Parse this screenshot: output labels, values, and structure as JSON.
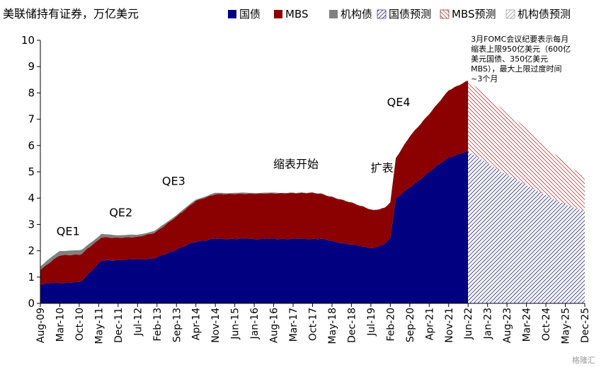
{
  "chart_data": {
    "type": "area",
    "title": "美联储持有证券，万亿美元",
    "ylim": [
      0,
      10
    ],
    "yticks": [
      0,
      1,
      2,
      3,
      4,
      5,
      6,
      7,
      8,
      9,
      10
    ],
    "grid": false,
    "legend_position": "top",
    "x_start": "Aug-09",
    "x_end": "Dec-25",
    "categories": [
      "Aug-09",
      "Mar-10",
      "Oct-10",
      "May-11",
      "Dec-11",
      "Jul-12",
      "Feb-13",
      "Sep-13",
      "Apr-14",
      "Nov-14",
      "Jun-15",
      "Jan-16",
      "Aug-16",
      "Mar-17",
      "Oct-17",
      "May-18",
      "Dec-18",
      "Jul-19",
      "Feb-20",
      "Sep-20",
      "Apr-21",
      "Nov-21",
      "Jun-22",
      "Jan-23",
      "Aug-23",
      "Mar-24",
      "Oct-24",
      "May-25",
      "Dec-25"
    ],
    "forecast_start": "Jun-22",
    "series": [
      {
        "name": "国债",
        "color": "#000080",
        "forecast": false,
        "points": [
          [
            "Aug-09",
            0.72
          ],
          [
            "Dec-09",
            0.77
          ],
          [
            "Oct-10",
            0.8
          ],
          [
            "Nov-10",
            0.86
          ],
          [
            "Jan-11",
            1.1
          ],
          [
            "Jun-11",
            1.62
          ],
          [
            "Jan-13",
            1.7
          ],
          [
            "Sep-13",
            2.05
          ],
          [
            "Apr-14",
            2.35
          ],
          [
            "Nov-14",
            2.45
          ],
          [
            "Jan-18",
            2.45
          ],
          [
            "Dec-18",
            2.23
          ],
          [
            "Aug-19",
            2.1
          ],
          [
            "Dec-19",
            2.25
          ],
          [
            "Feb-20",
            2.5
          ],
          [
            "Apr-20",
            4.0
          ],
          [
            "Sep-20",
            4.4
          ],
          [
            "Apr-21",
            5.0
          ],
          [
            "Nov-21",
            5.55
          ],
          [
            "Jun-22",
            5.77
          ]
        ]
      },
      {
        "name": "MBS",
        "color": "#8b0000",
        "forecast": false,
        "points": [
          [
            "Aug-09",
            0.55
          ],
          [
            "Mar-10",
            1.05
          ],
          [
            "Oct-10",
            1.05
          ],
          [
            "May-11",
            0.9
          ],
          [
            "Dec-11",
            0.85
          ],
          [
            "Jul-12",
            0.85
          ],
          [
            "Feb-13",
            1.0
          ],
          [
            "Sep-13",
            1.25
          ],
          [
            "Apr-14",
            1.55
          ],
          [
            "Nov-14",
            1.7
          ],
          [
            "Oct-17",
            1.75
          ],
          [
            "May-18",
            1.67
          ],
          [
            "Dec-18",
            1.6
          ],
          [
            "Jul-19",
            1.45
          ],
          [
            "Feb-20",
            1.35
          ],
          [
            "Sep-20",
            1.95
          ],
          [
            "Apr-21",
            2.2
          ],
          [
            "Nov-21",
            2.55
          ],
          [
            "Jun-22",
            2.7
          ]
        ]
      },
      {
        "name": "机构债",
        "color": "#808080",
        "forecast": false,
        "points": [
          [
            "Aug-09",
            0.13
          ],
          [
            "Mar-10",
            0.17
          ],
          [
            "Oct-10",
            0.16
          ],
          [
            "May-11",
            0.12
          ],
          [
            "Dec-11",
            0.1
          ],
          [
            "Jul-12",
            0.08
          ],
          [
            "Feb-13",
            0.07
          ],
          [
            "Apr-14",
            0.05
          ],
          [
            "Jun-15",
            0.04
          ],
          [
            "Oct-17",
            0.01
          ],
          [
            "Jun-22",
            0.0
          ]
        ]
      },
      {
        "name": "国债预测",
        "color": "#000080",
        "forecast": true,
        "points": [
          [
            "Jun-22",
            5.77
          ],
          [
            "Dec-22",
            5.4
          ],
          [
            "Jun-23",
            5.0
          ],
          [
            "Dec-23",
            4.67
          ],
          [
            "Jun-24",
            4.33
          ],
          [
            "Dec-24",
            4.0
          ],
          [
            "Jun-25",
            3.72
          ],
          [
            "Dec-25",
            3.5
          ]
        ]
      },
      {
        "name": "MBS预测",
        "color": "#8b0000",
        "forecast": true,
        "points": [
          [
            "Jun-22",
            2.7
          ],
          [
            "Dec-22",
            2.55
          ],
          [
            "Jun-23",
            2.42
          ],
          [
            "Dec-23",
            2.25
          ],
          [
            "Jun-24",
            2.05
          ],
          [
            "Dec-24",
            1.78
          ],
          [
            "Jun-25",
            1.55
          ],
          [
            "Dec-25",
            1.3
          ]
        ]
      },
      {
        "name": "机构债预测",
        "color": "#808080",
        "forecast": true,
        "points": [
          [
            "Jun-22",
            0.0
          ],
          [
            "Dec-25",
            0.0
          ]
        ]
      }
    ],
    "annotations": [
      {
        "text": "QE1",
        "x": "Jun-10",
        "y": 2.6
      },
      {
        "text": "QE2",
        "x": "Jan-12",
        "y": 3.3
      },
      {
        "text": "QE3",
        "x": "Aug-13",
        "y": 4.5
      },
      {
        "text": "缩表开始",
        "x": "Apr-17",
        "y": 5.15
      },
      {
        "text": "扩表",
        "x": "Nov-19",
        "y": 5.0
      },
      {
        "text": "QE4",
        "x": "May-20",
        "y": 7.5
      }
    ],
    "note_lines": [
      "3月FOMC会议纪要表示每月",
      "缩表上限950亿美元（600亿",
      "美元国债、350亿美元",
      "MBS），最大上限过度时间",
      "~3个月"
    ],
    "note_x": "Jul-22",
    "note_y": 10.0
  },
  "watermark": "格隆汇"
}
